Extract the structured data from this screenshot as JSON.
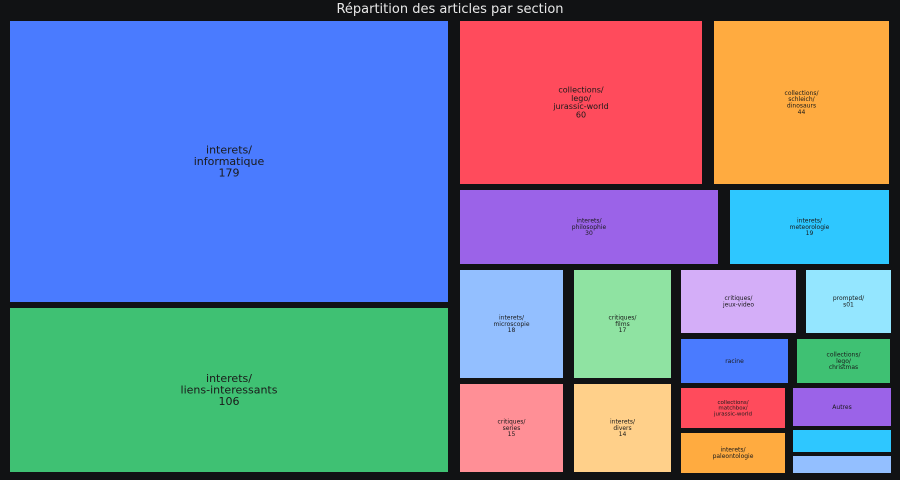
{
  "chart_data": {
    "type": "treemap",
    "title": "Répartition des articles par section",
    "items": [
      {
        "path": "interets/informatique",
        "lines": [
          "interets/",
          "informatique"
        ],
        "value": 179,
        "show_value": true,
        "color": "#4a7bff"
      },
      {
        "path": "interets/liens-interessants",
        "lines": [
          "interets/",
          "liens-interessants"
        ],
        "value": 106,
        "show_value": true,
        "color": "#3fc173"
      },
      {
        "path": "collections/lego/jurassic-world",
        "lines": [
          "collections/",
          "lego/",
          "jurassic-world"
        ],
        "value": 60,
        "show_value": true,
        "color": "#ff4b5c"
      },
      {
        "path": "collections/schleich/dinosaurs",
        "lines": [
          "collections/",
          "schleich/",
          "dinosaurs"
        ],
        "value": 44,
        "show_value": true,
        "color": "#ffab40"
      },
      {
        "path": "interets/philosophie",
        "lines": [
          "interets/",
          "philosophie"
        ],
        "value": 30,
        "show_value": true,
        "color": "#9b63e8"
      },
      {
        "path": "interets/meteorologie",
        "lines": [
          "interets/",
          "meteorologie"
        ],
        "value": 19,
        "show_value": true,
        "color": "#2ec7ff"
      },
      {
        "path": "interets/microscopie",
        "lines": [
          "interets/",
          "microscopie"
        ],
        "value": 18,
        "show_value": true,
        "color": "#93bfff"
      },
      {
        "path": "critiques/films",
        "lines": [
          "critiques/",
          "films"
        ],
        "value": 17,
        "show_value": true,
        "color": "#8fe3a2"
      },
      {
        "path": "critiques/series",
        "lines": [
          "critiques/",
          "series"
        ],
        "value": 15,
        "show_value": true,
        "color": "#ff8f96"
      },
      {
        "path": "interets/divers",
        "lines": [
          "interets/",
          "divers"
        ],
        "value": 14,
        "show_value": true,
        "color": "#ffd08a"
      },
      {
        "path": "critiques/jeux-video",
        "lines": [
          "critiques/",
          "jeux-video"
        ],
        "value": 12,
        "show_value": false,
        "color": "#d4aef8"
      },
      {
        "path": "prompted/s01",
        "lines": [
          "prompted/",
          "s01"
        ],
        "value": 10,
        "show_value": false,
        "color": "#94e6ff"
      },
      {
        "path": "racine",
        "lines": [
          "racine"
        ],
        "value": 8,
        "show_value": false,
        "color": "#4a7bff"
      },
      {
        "path": "collections/lego/christmas",
        "lines": [
          "collections/",
          "lego/",
          "christmas"
        ],
        "value": 8,
        "show_value": false,
        "color": "#3fc173"
      },
      {
        "path": "collections/matchbox/jurassic-world",
        "lines": [
          "collections/",
          "matchbox/",
          "jurassic-world"
        ],
        "value": 7,
        "show_value": false,
        "color": "#ff4b5c"
      },
      {
        "path": "Autres",
        "lines": [
          "Autres"
        ],
        "value": 6,
        "show_value": false,
        "color": "#9b63e8"
      },
      {
        "path": "interets/paleontologie",
        "lines": [
          "interets/",
          "paleontologie"
        ],
        "value": 6,
        "show_value": false,
        "color": "#ffab40"
      },
      {
        "path": "",
        "lines": [],
        "value": 4,
        "show_value": false,
        "color": "#2ec7ff"
      },
      {
        "path": "",
        "lines": [],
        "value": 3,
        "show_value": false,
        "color": "#93bfff"
      }
    ]
  }
}
